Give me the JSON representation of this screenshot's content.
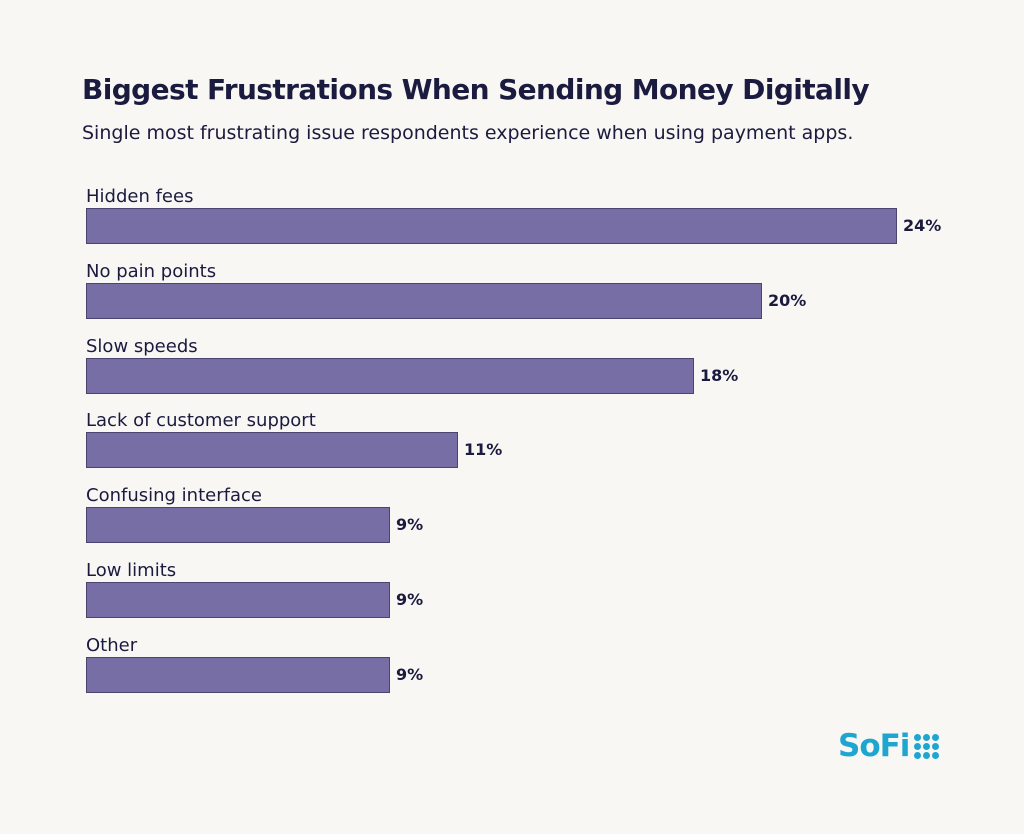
{
  "chart_data": {
    "type": "bar",
    "orientation": "horizontal",
    "title": "Biggest Frustrations When Sending Money Digitally",
    "subtitle": "Single most frustrating issue respondents experience when using payment apps.",
    "categories": [
      "Hidden fees",
      "No pain points",
      "Slow speeds",
      "Lack of customer support",
      "Confusing interface",
      "Low limits",
      "Other"
    ],
    "values": [
      24,
      20,
      18,
      11,
      9,
      9,
      9
    ],
    "value_labels": [
      "24%",
      "20%",
      "18%",
      "11%",
      "9%",
      "9%",
      "9%"
    ],
    "unit": "%",
    "xlim": [
      0,
      24
    ],
    "grid": false,
    "legend": "none",
    "bar_color": "#766ea4"
  },
  "branding": {
    "logo_text": "SoFi",
    "logo_color": "#1fa6d0"
  }
}
